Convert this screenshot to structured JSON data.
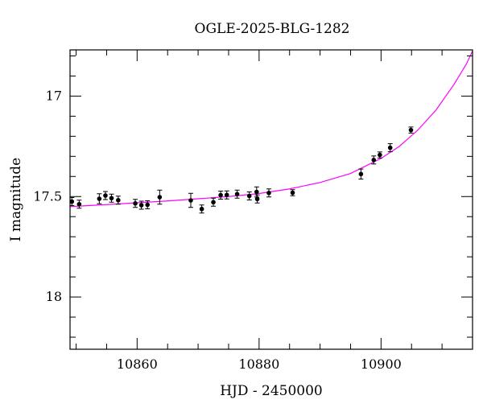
{
  "chart_data": {
    "type": "scatter",
    "title": "OGLE-2025-BLG-1282",
    "xlabel": "HJD - 2450000",
    "ylabel": "I magnitude",
    "xlim": [
      10849,
      10915
    ],
    "ylim": [
      18.26,
      16.77
    ],
    "y_inverted": true,
    "x_ticks": [
      10860,
      10880,
      10900
    ],
    "y_ticks": [
      17,
      17.5,
      18
    ],
    "grid": false,
    "series": [
      {
        "kind": "points_with_errorbars",
        "color": "#000000",
        "points": [
          {
            "x": 10849.3,
            "y": 17.525,
            "err": 0.02
          },
          {
            "x": 10850.5,
            "y": 17.538,
            "err": 0.02
          },
          {
            "x": 10853.8,
            "y": 17.511,
            "err": 0.025
          },
          {
            "x": 10854.8,
            "y": 17.495,
            "err": 0.02
          },
          {
            "x": 10855.8,
            "y": 17.508,
            "err": 0.02
          },
          {
            "x": 10856.9,
            "y": 17.518,
            "err": 0.02
          },
          {
            "x": 10859.7,
            "y": 17.534,
            "err": 0.02
          },
          {
            "x": 10860.7,
            "y": 17.543,
            "err": 0.02
          },
          {
            "x": 10861.7,
            "y": 17.541,
            "err": 0.02
          },
          {
            "x": 10863.7,
            "y": 17.503,
            "err": 0.035
          },
          {
            "x": 10868.8,
            "y": 17.519,
            "err": 0.035
          },
          {
            "x": 10870.6,
            "y": 17.562,
            "err": 0.02
          },
          {
            "x": 10872.5,
            "y": 17.528,
            "err": 0.02
          },
          {
            "x": 10873.7,
            "y": 17.493,
            "err": 0.02
          },
          {
            "x": 10874.7,
            "y": 17.492,
            "err": 0.02
          },
          {
            "x": 10876.4,
            "y": 17.488,
            "err": 0.02
          },
          {
            "x": 10878.4,
            "y": 17.497,
            "err": 0.02
          },
          {
            "x": 10879.6,
            "y": 17.477,
            "err": 0.025
          },
          {
            "x": 10879.7,
            "y": 17.512,
            "err": 0.02
          },
          {
            "x": 10881.6,
            "y": 17.482,
            "err": 0.02
          },
          {
            "x": 10885.5,
            "y": 17.481,
            "err": 0.015
          },
          {
            "x": 10896.7,
            "y": 17.388,
            "err": 0.025
          },
          {
            "x": 10898.8,
            "y": 17.318,
            "err": 0.02
          },
          {
            "x": 10899.8,
            "y": 17.293,
            "err": 0.015
          },
          {
            "x": 10901.5,
            "y": 17.257,
            "err": 0.02
          },
          {
            "x": 10904.9,
            "y": 17.169,
            "err": 0.015
          }
        ]
      },
      {
        "kind": "model_curve",
        "color": "#ff00ff",
        "points": [
          {
            "x": 10849,
            "y": 17.55
          },
          {
            "x": 10855,
            "y": 17.54
          },
          {
            "x": 10860,
            "y": 17.531
          },
          {
            "x": 10865,
            "y": 17.522
          },
          {
            "x": 10870,
            "y": 17.511
          },
          {
            "x": 10875,
            "y": 17.5
          },
          {
            "x": 10880,
            "y": 17.485
          },
          {
            "x": 10885,
            "y": 17.462
          },
          {
            "x": 10890,
            "y": 17.43
          },
          {
            "x": 10895,
            "y": 17.385
          },
          {
            "x": 10900,
            "y": 17.31
          },
          {
            "x": 10903,
            "y": 17.25
          },
          {
            "x": 10906,
            "y": 17.17
          },
          {
            "x": 10909,
            "y": 17.07
          },
          {
            "x": 10912,
            "y": 16.94
          },
          {
            "x": 10914,
            "y": 16.84
          },
          {
            "x": 10915,
            "y": 16.775
          }
        ]
      }
    ]
  }
}
